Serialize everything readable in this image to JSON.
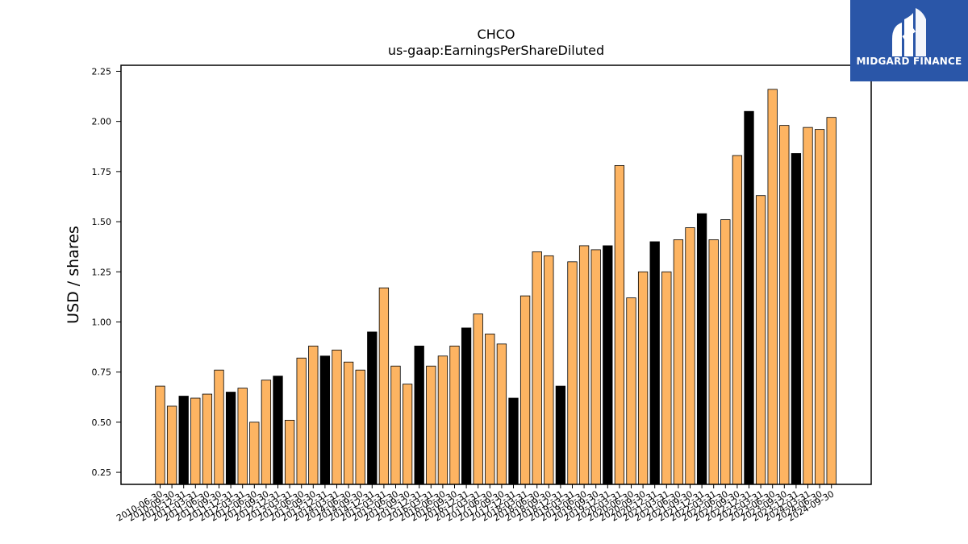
{
  "logo": {
    "text": "MIDGARD FINANCE",
    "icon": "midgard-logo-icon",
    "background": "#2a56a8"
  },
  "colors": {
    "normal": "#fdb462",
    "highlight": "#000000",
    "edge": "#000000"
  },
  "chart_data": {
    "type": "bar",
    "title": "CHCO",
    "subtitle": "us-gaap:EarningsPerShareDiluted",
    "xlabel": "",
    "ylabel": "USD / shares",
    "ylim": [
      0.19,
      2.28
    ],
    "yticks": [
      "0.25",
      "0.50",
      "0.75",
      "1.00",
      "1.25",
      "1.50",
      "1.75",
      "2.00",
      "2.25"
    ],
    "grid": false,
    "categories": [
      "2010-06-30",
      "2010-09-30",
      "2010-12-31",
      "2011-03-31",
      "2011-06-30",
      "2011-09-30",
      "2011-12-31",
      "2012-03-31",
      "2012-06-30",
      "2012-09-30",
      "2012-12-31",
      "2013-03-31",
      "2013-06-30",
      "2013-09-30",
      "2013-12-31",
      "2014-03-31",
      "2014-06-30",
      "2014-09-30",
      "2014-12-31",
      "2015-03-31",
      "2015-06-30",
      "2015-09-30",
      "2015-12-31",
      "2016-03-31",
      "2016-06-30",
      "2016-09-30",
      "2016-12-31",
      "2017-03-31",
      "2017-06-30",
      "2017-09-30",
      "2017-12-31",
      "2018-03-31",
      "2018-06-30",
      "2018-09-30",
      "2018-12-31",
      "2019-03-31",
      "2019-06-30",
      "2019-09-30",
      "2019-12-31",
      "2020-03-31",
      "2020-06-30",
      "2020-09-30",
      "2020-12-31",
      "2021-03-31",
      "2021-06-30",
      "2021-09-30",
      "2021-12-31",
      "2022-03-31",
      "2022-06-30",
      "2022-09-30",
      "2022-12-31",
      "2023-03-31",
      "2023-06-30",
      "2023-09-30",
      "2023-12-31",
      "2024-03-31",
      "2024-06-30",
      "2024-09-30"
    ],
    "values": [
      0.68,
      0.58,
      0.63,
      0.62,
      0.64,
      0.76,
      0.65,
      0.67,
      0.5,
      0.71,
      0.73,
      0.51,
      0.82,
      0.88,
      0.83,
      0.86,
      0.8,
      0.76,
      0.95,
      1.17,
      0.78,
      0.69,
      0.88,
      0.78,
      0.83,
      0.88,
      0.97,
      1.04,
      0.94,
      0.89,
      0.62,
      1.13,
      1.35,
      1.33,
      0.68,
      1.3,
      1.38,
      1.36,
      1.38,
      1.78,
      1.12,
      1.25,
      1.4,
      1.25,
      1.41,
      1.47,
      1.54,
      1.41,
      1.51,
      1.83,
      2.05,
      1.63,
      2.16,
      1.98,
      1.84,
      1.97,
      1.96,
      2.02
    ],
    "highlighted": [
      false,
      false,
      true,
      false,
      false,
      false,
      true,
      false,
      false,
      false,
      true,
      false,
      false,
      false,
      true,
      false,
      false,
      false,
      true,
      false,
      false,
      false,
      true,
      false,
      false,
      false,
      true,
      false,
      false,
      false,
      true,
      false,
      false,
      false,
      true,
      false,
      false,
      false,
      true,
      false,
      false,
      false,
      true,
      false,
      false,
      false,
      true,
      false,
      false,
      false,
      true,
      false,
      false,
      false,
      true,
      false,
      false,
      false
    ]
  }
}
